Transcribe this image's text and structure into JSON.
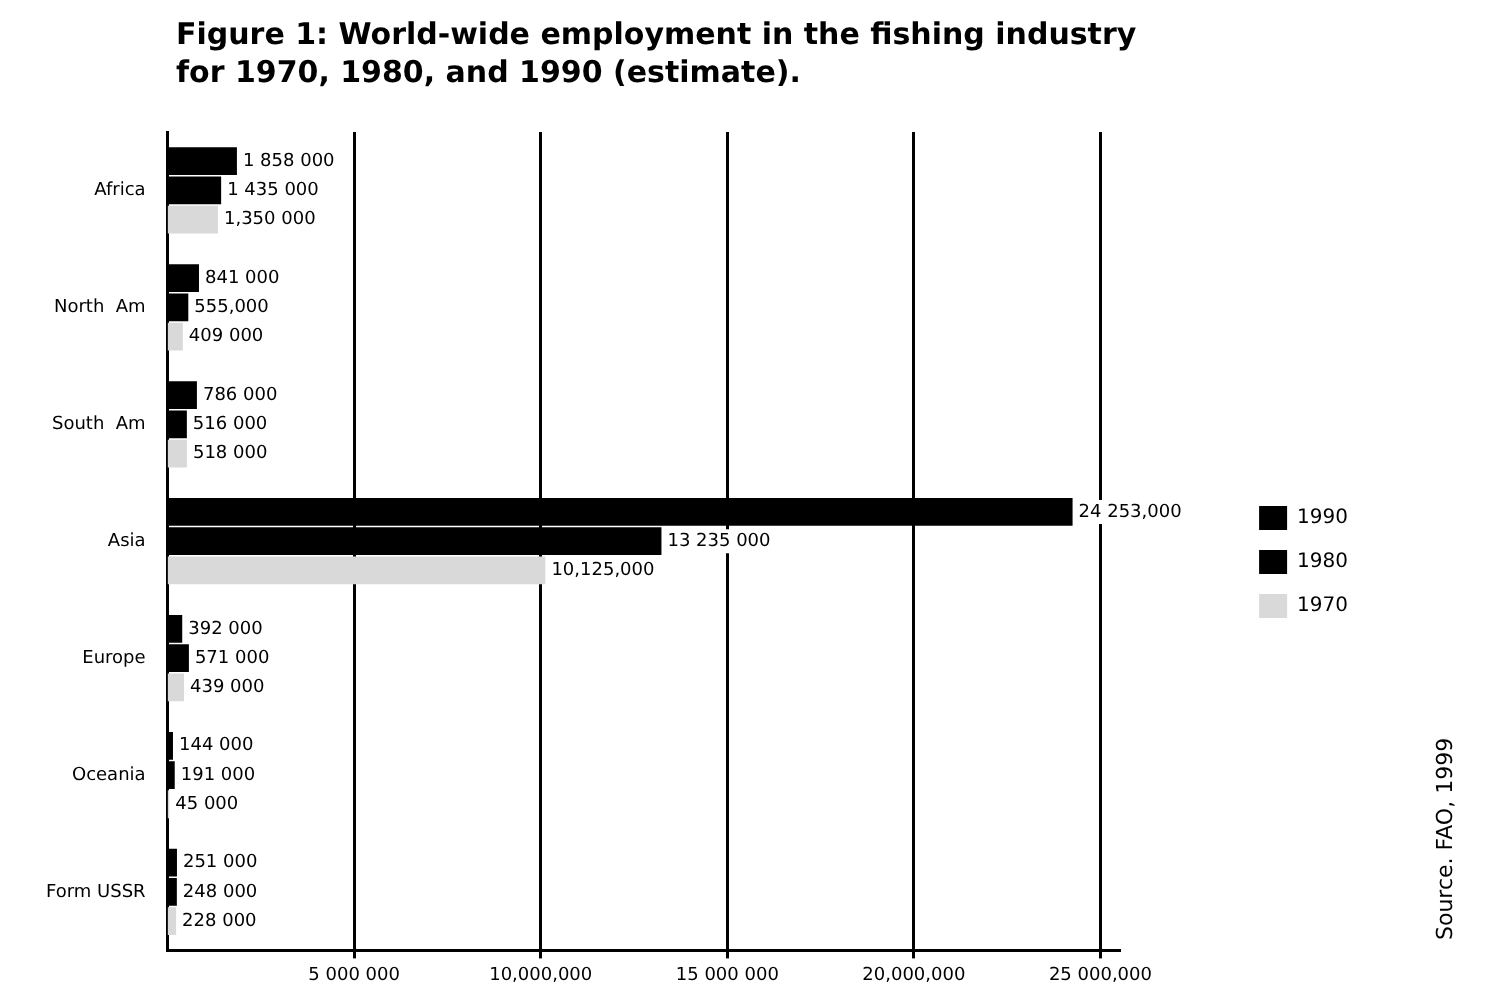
{
  "chart_data": {
    "type": "bar",
    "orientation": "horizontal",
    "title": "Figure 1: World-wide employment in the fishing industry\nfor 1970, 1980, and 1990 (estimate).",
    "categories": [
      "Africa",
      "North  Am",
      "South  Am",
      "Asia",
      "Europe",
      "Oceania",
      "Form USSR"
    ],
    "series": [
      {
        "name": "1990",
        "color": "#000000",
        "values": [
          1858000,
          841000,
          786000,
          24253000,
          392000,
          144000,
          251000
        ],
        "value_labels": [
          "1 858 000",
          "841 000",
          "786 000",
          "24 253,000",
          "392 000",
          "144 000",
          "251 000"
        ]
      },
      {
        "name": "1980",
        "color": "#000000",
        "values": [
          1435000,
          555000,
          516000,
          13235000,
          571000,
          191000,
          248000
        ],
        "value_labels": [
          "1 435 000",
          "555,000",
          "516 000",
          "13 235 000",
          "571 000",
          "191 000",
          "248 000"
        ]
      },
      {
        "name": "1970",
        "color": "#d9d9d9",
        "values": [
          1350000,
          409000,
          518000,
          10125000,
          439000,
          45000,
          228000
        ],
        "value_labels": [
          "1,350 000",
          "409 000",
          "518 000",
          "10,125,000",
          "439 000",
          "45 000",
          "228 000"
        ]
      }
    ],
    "xlim": [
      0,
      25500000
    ],
    "xticks": [
      {
        "value": 5000000,
        "label": "5 000 000"
      },
      {
        "value": 10000000,
        "label": "10,000,000"
      },
      {
        "value": 15000000,
        "label": "15 000 000"
      },
      {
        "value": 20000000,
        "label": "20,000,000"
      },
      {
        "value": 25000000,
        "label": "25 000,000"
      }
    ],
    "grid": "x",
    "legend": "right",
    "annotations": [
      "Source. FAO, 1999"
    ]
  }
}
